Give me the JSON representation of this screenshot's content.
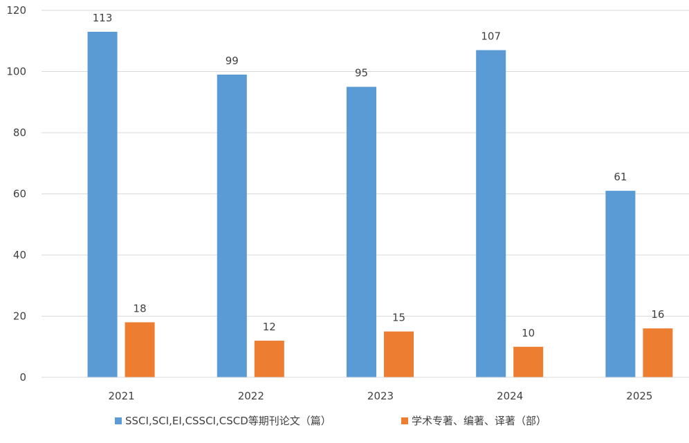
{
  "chart_data": {
    "type": "bar",
    "title": "",
    "xlabel": "",
    "ylabel": "",
    "categories": [
      "2021",
      "2022",
      "2023",
      "2024",
      "2025"
    ],
    "ylim": [
      0,
      120
    ],
    "yticks": [
      0,
      20,
      40,
      60,
      80,
      100,
      120
    ],
    "grid": true,
    "legend_position": "bottom",
    "series": [
      {
        "name": "SSCI,SCI,EI,CSSCI,CSCD等期刊论文（篇）",
        "color": "#5B9BD5",
        "values": [
          113,
          99,
          95,
          107,
          61
        ]
      },
      {
        "name": "学术专著、编著、译著（部）",
        "color": "#ED7D31",
        "values": [
          18,
          12,
          15,
          10,
          16
        ]
      }
    ]
  }
}
